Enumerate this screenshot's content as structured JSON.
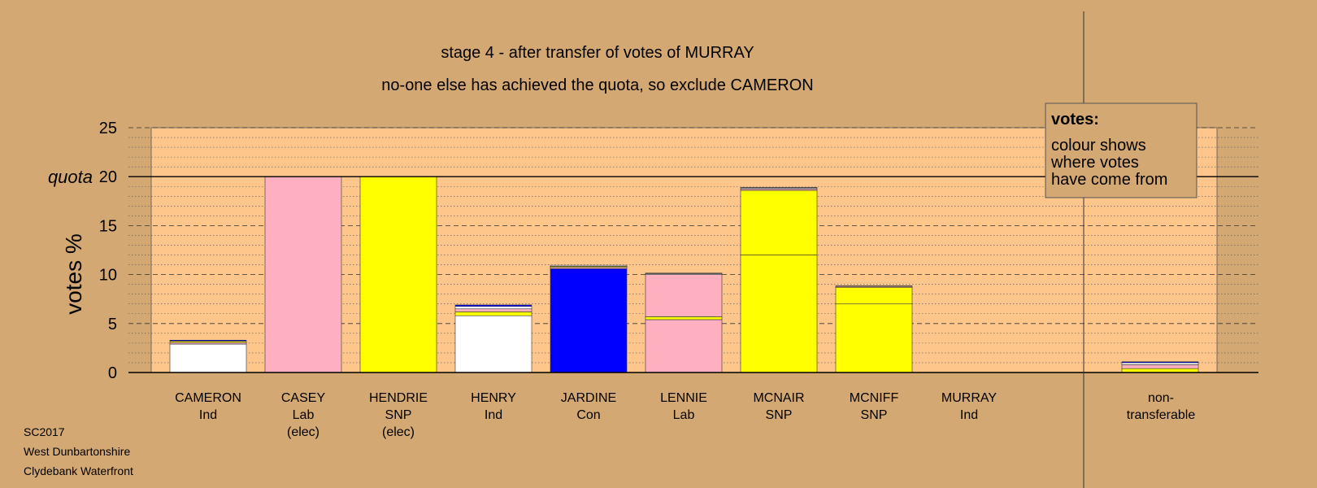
{
  "chart_data": {
    "type": "bar",
    "title": "stage 4 - after transfer of votes of MURRAY",
    "subtitle": "no-one else has achieved the quota, so exclude CAMERON",
    "ylabel": "votes %",
    "ylim": [
      0,
      25
    ],
    "yticks": [
      "0",
      "5",
      "10",
      "15",
      "20",
      "25"
    ],
    "quota": 20,
    "quota_label": "quota",
    "stacked": true,
    "grid": true,
    "colors": {
      "Ind": "#ffffff",
      "Lab": "#ffb0c0",
      "SNP": "#ffff00",
      "Con": "#0000ff",
      "plot_background": "#ffc68c",
      "page_background": "#d4a872"
    },
    "categories": [
      {
        "name": "CAMERON",
        "party": "Ind",
        "note": "",
        "segments": [
          {
            "from": "Ind",
            "value": 2.9
          },
          {
            "from": "Lab",
            "value": 0.15
          },
          {
            "from": "SNP",
            "value": 0.15
          },
          {
            "from": "Con",
            "value": 0.1
          }
        ]
      },
      {
        "name": "CASEY",
        "party": "Lab",
        "note": "(elec)",
        "segments": [
          {
            "from": "Lab",
            "value": 20.0
          }
        ]
      },
      {
        "name": "HENDRIE",
        "party": "SNP",
        "note": "(elec)",
        "segments": [
          {
            "from": "SNP",
            "value": 20.0
          }
        ]
      },
      {
        "name": "HENRY",
        "party": "Ind",
        "note": "",
        "segments": [
          {
            "from": "Ind",
            "value": 5.8
          },
          {
            "from": "SNP",
            "value": 0.4
          },
          {
            "from": "Lab",
            "value": 0.3
          },
          {
            "from": "Ind",
            "value": 0.25
          },
          {
            "from": "Con",
            "value": 0.15
          }
        ]
      },
      {
        "name": "JARDINE",
        "party": "Con",
        "note": "",
        "segments": [
          {
            "from": "Con",
            "value": 10.6
          },
          {
            "from": "Lab",
            "value": 0.15
          },
          {
            "from": "SNP",
            "value": 0.1
          },
          {
            "from": "Ind",
            "value": 0.1
          }
        ]
      },
      {
        "name": "LENNIE",
        "party": "Lab",
        "note": "",
        "segments": [
          {
            "from": "Lab",
            "value": 5.4
          },
          {
            "from": "SNP",
            "value": 0.3
          },
          {
            "from": "Lab",
            "value": 4.3
          },
          {
            "from": "Ind",
            "value": 0.1
          },
          {
            "from": "Con",
            "value": 0.05
          }
        ]
      },
      {
        "name": "MCNAIR",
        "party": "SNP",
        "note": "",
        "segments": [
          {
            "from": "SNP",
            "value": 12.0
          },
          {
            "from": "SNP",
            "value": 6.6
          },
          {
            "from": "Lab",
            "value": 0.15
          },
          {
            "from": "Ind",
            "value": 0.1
          },
          {
            "from": "Con",
            "value": 0.05
          }
        ]
      },
      {
        "name": "MCNIFF",
        "party": "SNP",
        "note": "",
        "segments": [
          {
            "from": "SNP",
            "value": 7.0
          },
          {
            "from": "SNP",
            "value": 1.7
          },
          {
            "from": "Lab",
            "value": 0.1
          },
          {
            "from": "Ind",
            "value": 0.05
          }
        ]
      },
      {
        "name": "MURRAY",
        "party": "Ind",
        "note": "",
        "segments": []
      }
    ],
    "nontransferable": {
      "label_line1": "non-",
      "label_line2": "transferable",
      "segments": [
        {
          "from": "SNP",
          "value": 0.4
        },
        {
          "from": "Lab",
          "value": 0.4
        },
        {
          "from": "Ind",
          "value": 0.2
        },
        {
          "from": "Con",
          "value": 0.1
        }
      ]
    }
  },
  "legend": {
    "title": "votes:",
    "lines": [
      "colour shows",
      "where votes",
      "have come from"
    ]
  },
  "footer": {
    "line1": "SC2017",
    "line2": "West Dunbartonshire",
    "line3": "Clydebank Waterfront"
  }
}
